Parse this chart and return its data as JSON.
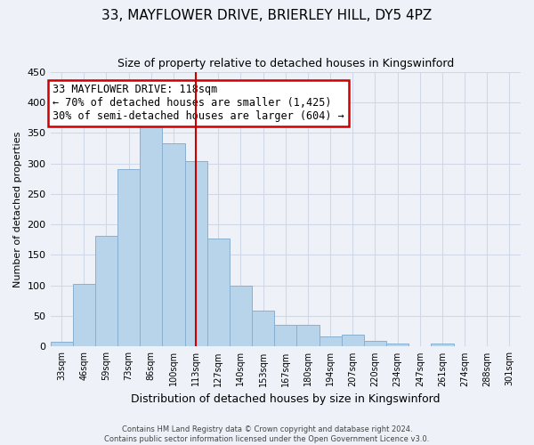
{
  "title": "33, MAYFLOWER DRIVE, BRIERLEY HILL, DY5 4PZ",
  "subtitle": "Size of property relative to detached houses in Kingswinford",
  "xlabel": "Distribution of detached houses by size in Kingswinford",
  "ylabel": "Number of detached properties",
  "footnote1": "Contains HM Land Registry data © Crown copyright and database right 2024.",
  "footnote2": "Contains public sector information licensed under the Open Government Licence v3.0.",
  "categories": [
    "33sqm",
    "46sqm",
    "59sqm",
    "73sqm",
    "86sqm",
    "100sqm",
    "113sqm",
    "127sqm",
    "140sqm",
    "153sqm",
    "167sqm",
    "180sqm",
    "194sqm",
    "207sqm",
    "220sqm",
    "234sqm",
    "247sqm",
    "261sqm",
    "274sqm",
    "288sqm",
    "301sqm"
  ],
  "values": [
    8,
    103,
    181,
    290,
    366,
    333,
    303,
    177,
    100,
    59,
    36,
    36,
    16,
    19,
    9,
    5,
    0,
    5,
    0,
    0,
    0
  ],
  "bar_color": "#b8d4ea",
  "bar_edge_color": "#8ab0d0",
  "property_size_label": "33 MAYFLOWER DRIVE: 118sqm",
  "annotation_line1": "← 70% of detached houses are smaller (1,425)",
  "annotation_line2": "30% of semi-detached houses are larger (604) →",
  "vline_color": "#cc0000",
  "vline_x": 6.5,
  "annotation_box_color": "#ffffff",
  "annotation_box_edge_color": "#cc0000",
  "ylim": [
    0,
    450
  ],
  "yticks": [
    0,
    50,
    100,
    150,
    200,
    250,
    300,
    350,
    400,
    450
  ],
  "grid_color": "#d0d8e8",
  "background_color": "#eef2f8",
  "title_fontsize": 11,
  "subtitle_fontsize": 9,
  "ylabel_fontsize": 8,
  "xlabel_fontsize": 9,
  "annot_fontsize": 8.5
}
